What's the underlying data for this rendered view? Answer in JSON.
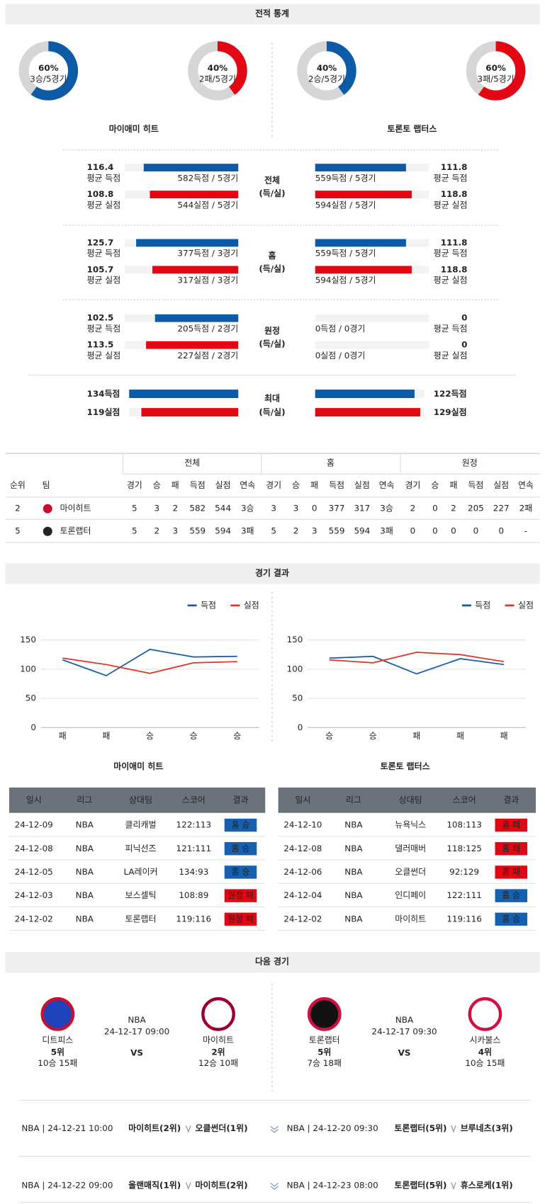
{
  "sections": [
    "전적 통계",
    "경기 결과",
    "다음 경기"
  ],
  "teams": [
    "마이애미 히트",
    "토론토 랩터스"
  ],
  "donuts": [
    {
      "value": 60,
      "label": "60%",
      "sub": "3승/5경기",
      "color": "#0d5aa7"
    },
    {
      "value": 40,
      "label": "40%",
      "sub": "2패/5경기",
      "color": "#e30613"
    },
    {
      "value": 40,
      "label": "40%",
      "sub": "2승/5경기",
      "color": "#0d5aa7"
    },
    {
      "value": 60,
      "label": "60%",
      "sub": "3패/5경기",
      "color": "#e30613"
    }
  ],
  "stat_groups": [
    {
      "name": "전체",
      "sub": "(득/실)",
      "left": [
        {
          "value": 116.4,
          "label": "평균 득점",
          "detail": "582득점 / 5경기"
        },
        {
          "value": 108.8,
          "label": "평균 실점",
          "detail": "544실점 / 5경기"
        }
      ],
      "right": [
        {
          "value": 111.8,
          "label": "평균 득점",
          "detail": "559득점 / 5경기"
        },
        {
          "value": 118.8,
          "label": "평균 실점",
          "detail": "594실점 / 5경기"
        }
      ]
    },
    {
      "name": "홈",
      "sub": "(득/실)",
      "left": [
        {
          "value": 125.7,
          "label": "평균 득점",
          "detail": "377득점 / 3경기"
        },
        {
          "value": 105.7,
          "label": "평균 실점",
          "detail": "317실점 / 3경기"
        }
      ],
      "right": [
        {
          "value": 111.8,
          "label": "평균 득점",
          "detail": "559득점 / 5경기"
        },
        {
          "value": 118.8,
          "label": "평균 실점",
          "detail": "594실점 / 5경기"
        }
      ]
    },
    {
      "name": "원정",
      "sub": "(득/실)",
      "left": [
        {
          "value": 102.5,
          "label": "평균 득점",
          "detail": "205득점 / 2경기"
        },
        {
          "value": 113.5,
          "label": "평균 실점",
          "detail": "227실점 / 2경기"
        }
      ],
      "right": [
        {
          "value": 0,
          "label": "평균 득점",
          "detail": "0득점 / 0경기"
        },
        {
          "value": 0,
          "label": "평균 실점",
          "detail": "0실점 / 0경기"
        }
      ]
    }
  ],
  "max_group": {
    "name": "최대",
    "sub": "(득/실)",
    "left": [
      {
        "value": 134,
        "label": "134득점"
      },
      {
        "value": 119,
        "label": "119실점"
      }
    ],
    "right": [
      {
        "value": 122,
        "label": "122득점"
      },
      {
        "value": 129,
        "label": "129실점"
      }
    ]
  },
  "standings": {
    "groups": [
      "전체",
      "홈",
      "원정"
    ],
    "rank_header": "순위",
    "team_header": "팀",
    "columns": [
      "경기",
      "승",
      "패",
      "득점",
      "실점",
      "연속"
    ],
    "rows": [
      {
        "rank": 2,
        "team": "마이히트",
        "cells": [
          5,
          3,
          2,
          582,
          544,
          "3승",
          3,
          3,
          0,
          377,
          317,
          "3승",
          2,
          0,
          2,
          205,
          227,
          "2패"
        ]
      },
      {
        "rank": 5,
        "team": "토론랩터",
        "cells": [
          5,
          2,
          3,
          559,
          594,
          "3패",
          5,
          2,
          3,
          559,
          594,
          "3패",
          0,
          0,
          0,
          0,
          0,
          "-"
        ]
      }
    ]
  },
  "chart_data": [
    {
      "type": "line",
      "categories": [
        "패",
        "패",
        "승",
        "승",
        "승"
      ],
      "series": [
        {
          "name": "득점",
          "color": "#0d5aa7",
          "values": [
            116,
            89,
            134,
            121,
            122
          ]
        },
        {
          "name": "실점",
          "color": "#e0301e",
          "values": [
            119,
            108,
            93,
            111,
            113
          ]
        }
      ],
      "ylim": [
        0,
        150
      ],
      "yticks": [
        0,
        50,
        100,
        150
      ],
      "grid": true
    },
    {
      "type": "line",
      "categories": [
        "승",
        "승",
        "패",
        "패",
        "패"
      ],
      "series": [
        {
          "name": "득점",
          "color": "#0d5aa7",
          "values": [
            119,
            122,
            92,
            118,
            108
          ]
        },
        {
          "name": "실점",
          "color": "#e0301e",
          "values": [
            116,
            111,
            129,
            125,
            113
          ]
        }
      ],
      "ylim": [
        0,
        150
      ],
      "yticks": [
        0,
        50,
        100,
        150
      ],
      "grid": true
    }
  ],
  "results": [
    {
      "headers": [
        "일시",
        "리그",
        "상대팀",
        "스코어",
        "결과"
      ],
      "rows": [
        [
          "24-12-09",
          "NBA",
          "클리캐벌",
          "122:113",
          "홈 승"
        ],
        [
          "24-12-08",
          "NBA",
          "피닉선즈",
          "121:111",
          "홈 승"
        ],
        [
          "24-12-05",
          "NBA",
          "LA레이커",
          "134:93",
          "홈 승"
        ],
        [
          "24-12-03",
          "NBA",
          "보스셀틱",
          "108:89",
          "원정 패"
        ],
        [
          "24-12-02",
          "NBA",
          "토론랩터",
          "119:116",
          "원정 패"
        ]
      ]
    },
    {
      "headers": [
        "일시",
        "리그",
        "상대팀",
        "스코어",
        "결과"
      ],
      "rows": [
        [
          "24-12-10",
          "NBA",
          "뉴욕닉스",
          "108:113",
          "홈 패"
        ],
        [
          "24-12-08",
          "NBA",
          "댈러매버",
          "118:125",
          "홈 패"
        ],
        [
          "24-12-06",
          "NBA",
          "오클썬더",
          "92:129",
          "홈 패"
        ],
        [
          "24-12-04",
          "NBA",
          "인디페이",
          "122:111",
          "홈 승"
        ],
        [
          "24-12-02",
          "NBA",
          "마이히트",
          "119:116",
          "홈 승"
        ]
      ]
    }
  ],
  "next_games": [
    {
      "league": "NBA",
      "time": "24-12-17 09:00",
      "vs": "VS",
      "teams": [
        {
          "name": "디트피스",
          "rank": "5위",
          "record": "10승 15패"
        },
        {
          "name": "마이히트",
          "rank": "2위",
          "record": "12승 10패"
        }
      ]
    },
    {
      "league": "NBA",
      "time": "24-12-17 09:30",
      "vs": "VS",
      "teams": [
        {
          "name": "토론랩터",
          "rank": "5위",
          "record": "7승 18패"
        },
        {
          "name": "시카불스",
          "rank": "4위",
          "record": "10승 15패"
        }
      ]
    }
  ],
  "schedule": [
    {
      "left": {
        "info": "NBA | 24-12-21 10:00",
        "team1": "마이히트(2위)",
        "team2": "오클썬더(1위)"
      },
      "right": {
        "info": "NBA | 24-12-20 09:30",
        "team1": "토론랩터(5위)",
        "team2": "브루네츠(3위)"
      }
    },
    {
      "left": {
        "info": "NBA | 24-12-22 09:00",
        "team1": "올랜매직(1위)",
        "team2": "마이히트(2위)"
      },
      "right": {
        "info": "NBA | 24-12-23 08:00",
        "team1": "토론랩터(5위)",
        "team2": "휴스로케(1위)"
      }
    }
  ]
}
